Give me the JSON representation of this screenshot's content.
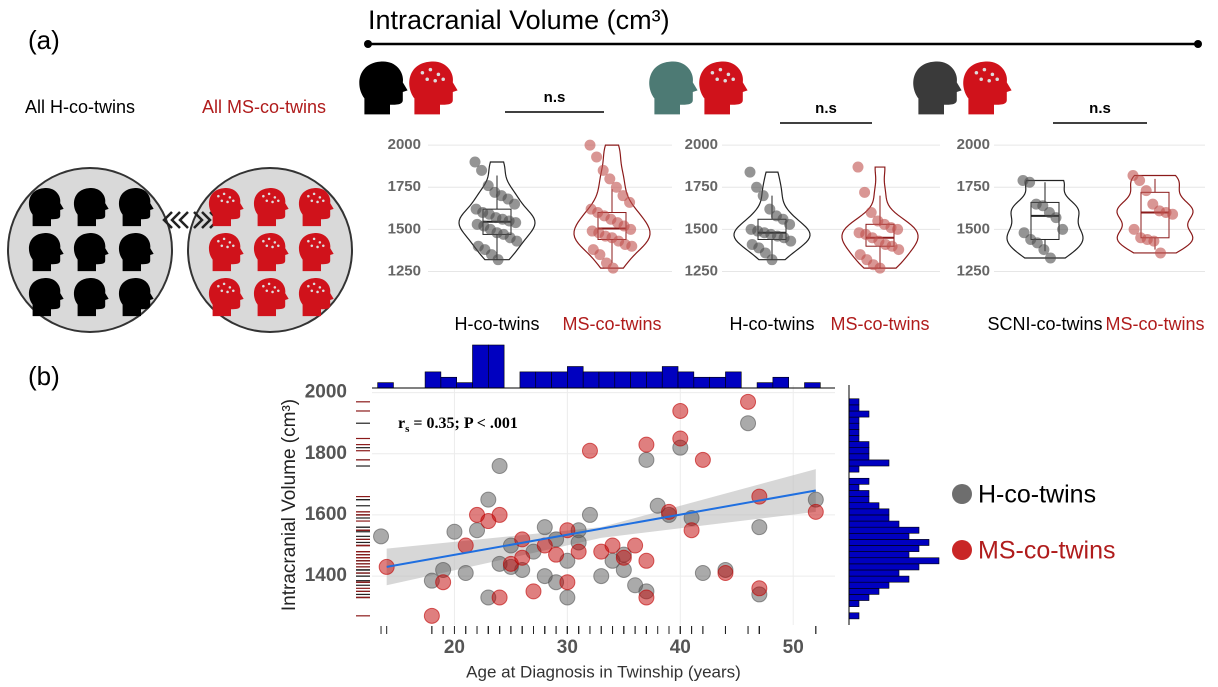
{
  "figure": {
    "panel_labels": [
      "(a)",
      "(b)"
    ],
    "header": "Intracranial Volume (cm³)"
  },
  "diagram": {
    "left_label": "All H-co-twins",
    "right_label": "All MS-co-twins"
  },
  "chart_data": [
    {
      "type": "violin",
      "annotation": "n.s",
      "ylim": [
        1140,
        2090
      ],
      "yticks": [
        1250,
        1500,
        1750,
        2000
      ],
      "grid": true,
      "groups": [
        {
          "label": "H-co-twins",
          "label_color": "#000000",
          "color": "#4d4d4d",
          "values": [
            1900,
            1850,
            1760,
            1720,
            1700,
            1680,
            1650,
            1620,
            1600,
            1590,
            1570,
            1560,
            1550,
            1540,
            1530,
            1520,
            1500,
            1480,
            1470,
            1450,
            1430,
            1400,
            1380,
            1350,
            1320
          ],
          "box": {
            "low": 1320,
            "q1": 1470,
            "median": 1545,
            "q3": 1620,
            "high": 1820
          }
        },
        {
          "label": "MS-co-twins",
          "label_color": "#b01c1c",
          "color": "#c0504d",
          "values": [
            2000,
            1930,
            1850,
            1800,
            1750,
            1700,
            1660,
            1620,
            1600,
            1580,
            1560,
            1540,
            1520,
            1500,
            1490,
            1480,
            1460,
            1450,
            1430,
            1410,
            1400,
            1380,
            1350,
            1300,
            1270
          ],
          "box": {
            "low": 1300,
            "q1": 1440,
            "median": 1505,
            "q3": 1600,
            "high": 1740
          }
        }
      ]
    },
    {
      "type": "violin",
      "annotation": "n.s",
      "ylim": [
        1140,
        2090
      ],
      "yticks": [
        1250,
        1500,
        1750,
        2000
      ],
      "grid": true,
      "groups": [
        {
          "label": "H-co-twins",
          "label_color": "#000000",
          "color": "#4d4d4d",
          "values": [
            1840,
            1750,
            1700,
            1620,
            1580,
            1560,
            1530,
            1500,
            1490,
            1480,
            1470,
            1460,
            1450,
            1430,
            1410,
            1390,
            1360,
            1320
          ],
          "box": {
            "low": 1320,
            "q1": 1440,
            "median": 1480,
            "q3": 1560,
            "high": 1700
          }
        },
        {
          "label": "MS-co-twins",
          "label_color": "#b01c1c",
          "color": "#c0504d",
          "values": [
            1870,
            1720,
            1600,
            1550,
            1530,
            1510,
            1500,
            1480,
            1470,
            1450,
            1430,
            1410,
            1400,
            1380,
            1350,
            1320,
            1290,
            1270
          ],
          "box": {
            "low": 1270,
            "q1": 1400,
            "median": 1450,
            "q3": 1530,
            "high": 1700
          }
        }
      ]
    },
    {
      "type": "violin",
      "annotation": "n.s",
      "ylim": [
        1140,
        2090
      ],
      "yticks": [
        1250,
        1500,
        1750,
        2000
      ],
      "grid": true,
      "groups": [
        {
          "label": "SCNI-co-twins",
          "label_color": "#000000",
          "color": "#4d4d4d",
          "values": [
            1790,
            1780,
            1650,
            1640,
            1600,
            1570,
            1500,
            1480,
            1440,
            1420,
            1380,
            1330
          ],
          "box": {
            "low": 1370,
            "q1": 1440,
            "median": 1580,
            "q3": 1660,
            "high": 1780
          }
        },
        {
          "label": "MS-co-twins",
          "label_color": "#b01c1c",
          "color": "#c0504d",
          "values": [
            1820,
            1790,
            1730,
            1650,
            1610,
            1600,
            1590,
            1500,
            1450,
            1440,
            1430,
            1360
          ],
          "box": {
            "low": 1380,
            "q1": 1450,
            "median": 1600,
            "q3": 1720,
            "high": 1800
          }
        }
      ]
    },
    {
      "type": "scatter",
      "x_label": "Age at Diagnosis in Twinship (years)",
      "y_label": "Intracranial Volume (cm³)",
      "annotation": [
        "r",
        "s",
        " = 0.35; P < .001"
      ],
      "xlim": [
        12.7,
        53.7
      ],
      "ylim": [
        1240,
        2025
      ],
      "xticks": [
        20,
        30,
        40,
        50
      ],
      "yticks": [
        1400,
        1600,
        1800,
        2000
      ],
      "grid": true,
      "legend": "right",
      "series": [
        {
          "name": "H-co-twins",
          "color": "#555555",
          "x": [
            13.5,
            18,
            19,
            20,
            21,
            22,
            23,
            23,
            24,
            24,
            25,
            26,
            27,
            28,
            28,
            29,
            30,
            30,
            31,
            32,
            33,
            34,
            35,
            35,
            37,
            37,
            38,
            39,
            40,
            41,
            42,
            44,
            46,
            47,
            47,
            52,
            25,
            31,
            36,
            29
          ],
          "values": [
            1530,
            1385,
            1420,
            1545,
            1410,
            1550,
            1650,
            1330,
            1760,
            1440,
            1500,
            1420,
            1480,
            1560,
            1400,
            1380,
            1450,
            1330,
            1550,
            1600,
            1400,
            1450,
            1470,
            1420,
            1780,
            1350,
            1630,
            1600,
            1820,
            1590,
            1410,
            1420,
            1900,
            1560,
            1340,
            1650,
            1430,
            1510,
            1370,
            1520
          ]
        },
        {
          "name": "MS-co-twins",
          "color": "#c00000",
          "x": [
            14,
            18,
            19,
            21,
            22,
            23,
            24,
            24,
            25,
            26,
            27,
            28,
            29,
            30,
            31,
            32,
            33,
            34,
            35,
            36,
            37,
            37,
            37,
            39,
            40,
            40,
            41,
            42,
            44,
            46,
            47,
            47,
            52,
            30,
            26
          ],
          "values": [
            1430,
            1270,
            1380,
            1500,
            1600,
            1580,
            1600,
            1330,
            1440,
            1460,
            1350,
            1500,
            1470,
            1380,
            1480,
            1810,
            1480,
            1500,
            1460,
            1500,
            1830,
            1450,
            1330,
            1610,
            1940,
            1850,
            1550,
            1780,
            1410,
            1970,
            1660,
            1360,
            1610,
            1550,
            1520
          ]
        }
      ],
      "fit": {
        "color": "#1f6fe0",
        "x": [
          14,
          52
        ],
        "y": [
          1430,
          1680
        ]
      },
      "fit_band": {
        "x": [
          14,
          33,
          52
        ],
        "lower": [
          1370,
          1525,
          1610
        ],
        "upper": [
          1490,
          1560,
          1750
        ]
      },
      "top_histogram": {
        "color": "#0000c0",
        "bins": [
          13.2,
          14.6,
          16,
          17.4,
          18.8,
          20.2,
          21.6,
          23,
          24.4,
          25.8,
          27.2,
          28.6,
          30,
          31.4,
          32.8,
          34.2,
          35.6,
          37,
          38.4,
          39.8,
          41.2,
          42.6,
          44,
          45.4,
          46.8,
          48.2,
          49.6,
          51,
          52.4
        ],
        "counts": [
          1,
          0,
          0,
          3,
          2,
          1,
          8,
          8,
          0,
          3,
          3,
          3,
          4,
          3,
          3,
          3,
          3,
          3,
          4,
          3,
          2,
          2,
          3,
          0,
          1,
          2,
          0,
          1
        ]
      },
      "right_histogram": {
        "color": "#0000c0",
        "bins": [
          1260,
          1280,
          1300,
          1320,
          1340,
          1360,
          1380,
          1400,
          1420,
          1440,
          1460,
          1480,
          1500,
          1520,
          1540,
          1560,
          1580,
          1600,
          1620,
          1640,
          1660,
          1680,
          1700,
          1720,
          1740,
          1760,
          1780,
          1800,
          1820,
          1840,
          1860,
          1880,
          1900,
          1920,
          1940,
          1960,
          1980,
          2000
        ],
        "counts": [
          1,
          0,
          1,
          2,
          3,
          4,
          6,
          5,
          7,
          9,
          6,
          7,
          8,
          6,
          7,
          5,
          4,
          4,
          3,
          2,
          2,
          1,
          2,
          0,
          1,
          4,
          2,
          2,
          2,
          1,
          1,
          1,
          1,
          2,
          1,
          1,
          0
        ]
      }
    }
  ]
}
